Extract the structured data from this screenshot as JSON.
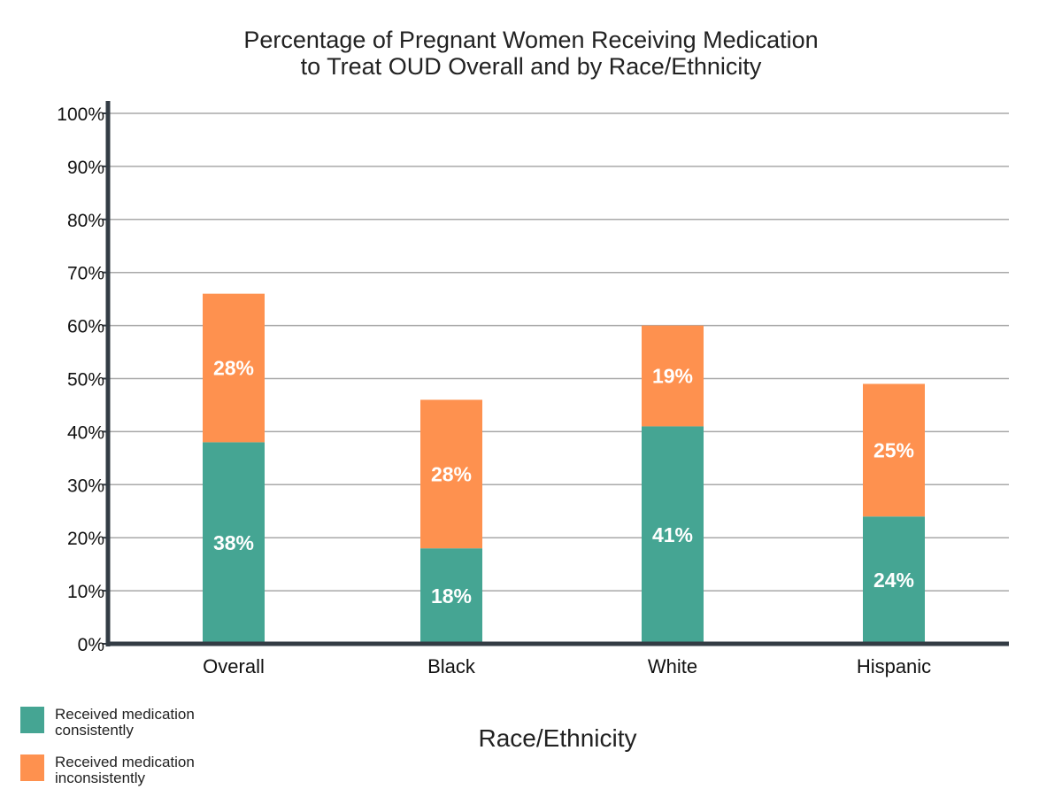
{
  "chart_data": {
    "type": "bar",
    "stacked": true,
    "title": [
      "Percentage of Pregnant Women Receiving Medication",
      "to Treat OUD Overall and by Race/Ethnicity"
    ],
    "xlabel": "Race/Ethnicity",
    "ylabel": "",
    "categories": [
      "Overall",
      "Black",
      "White",
      "Hispanic"
    ],
    "ylim": [
      0,
      100
    ],
    "yticks": [
      "0%",
      "10%",
      "20%",
      "30%",
      "40%",
      "50%",
      "60%",
      "70%",
      "80%",
      "90%",
      "100%"
    ],
    "grid": true,
    "series": [
      {
        "name": "Received medication consistently",
        "legend_lines": [
          "Received medication",
          "consistently"
        ],
        "color": "#45a593",
        "values": [
          38,
          18,
          41,
          24
        ],
        "labels": [
          "38%",
          "18%",
          "41%",
          "24%"
        ]
      },
      {
        "name": "Received medication inconsistently",
        "legend_lines": [
          "Received medication",
          "inconsistently"
        ],
        "color": "#fe914f",
        "values": [
          28,
          28,
          19,
          25
        ],
        "labels": [
          "28%",
          "28%",
          "19%",
          "25%"
        ]
      }
    ],
    "legend_position": "bottom-left"
  }
}
